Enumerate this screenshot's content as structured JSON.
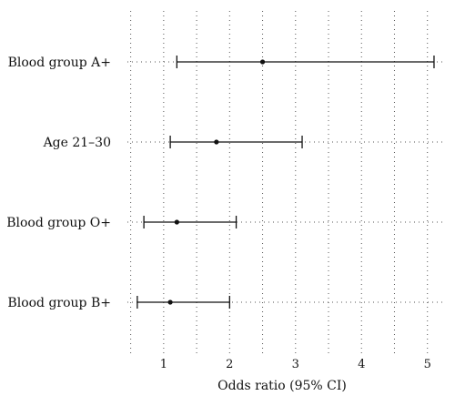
{
  "chart_data": {
    "type": "forest",
    "title": "",
    "xlabel": "Odds ratio (95% CI)",
    "xlim": [
      0.45,
      5.28
    ],
    "xticks": [
      1,
      2,
      3,
      4,
      5
    ],
    "grid": true,
    "rows": [
      {
        "label": "Blood group A+",
        "or": 2.5,
        "lower": 1.2,
        "upper": 5.1
      },
      {
        "label": "Age 21–30",
        "or": 1.8,
        "lower": 1.1,
        "upper": 3.1
      },
      {
        "label": "Blood group O+",
        "or": 1.2,
        "lower": 0.7,
        "upper": 2.1
      },
      {
        "label": "Blood group B+",
        "or": 1.1,
        "lower": 0.6,
        "upper": 2.0
      }
    ]
  }
}
